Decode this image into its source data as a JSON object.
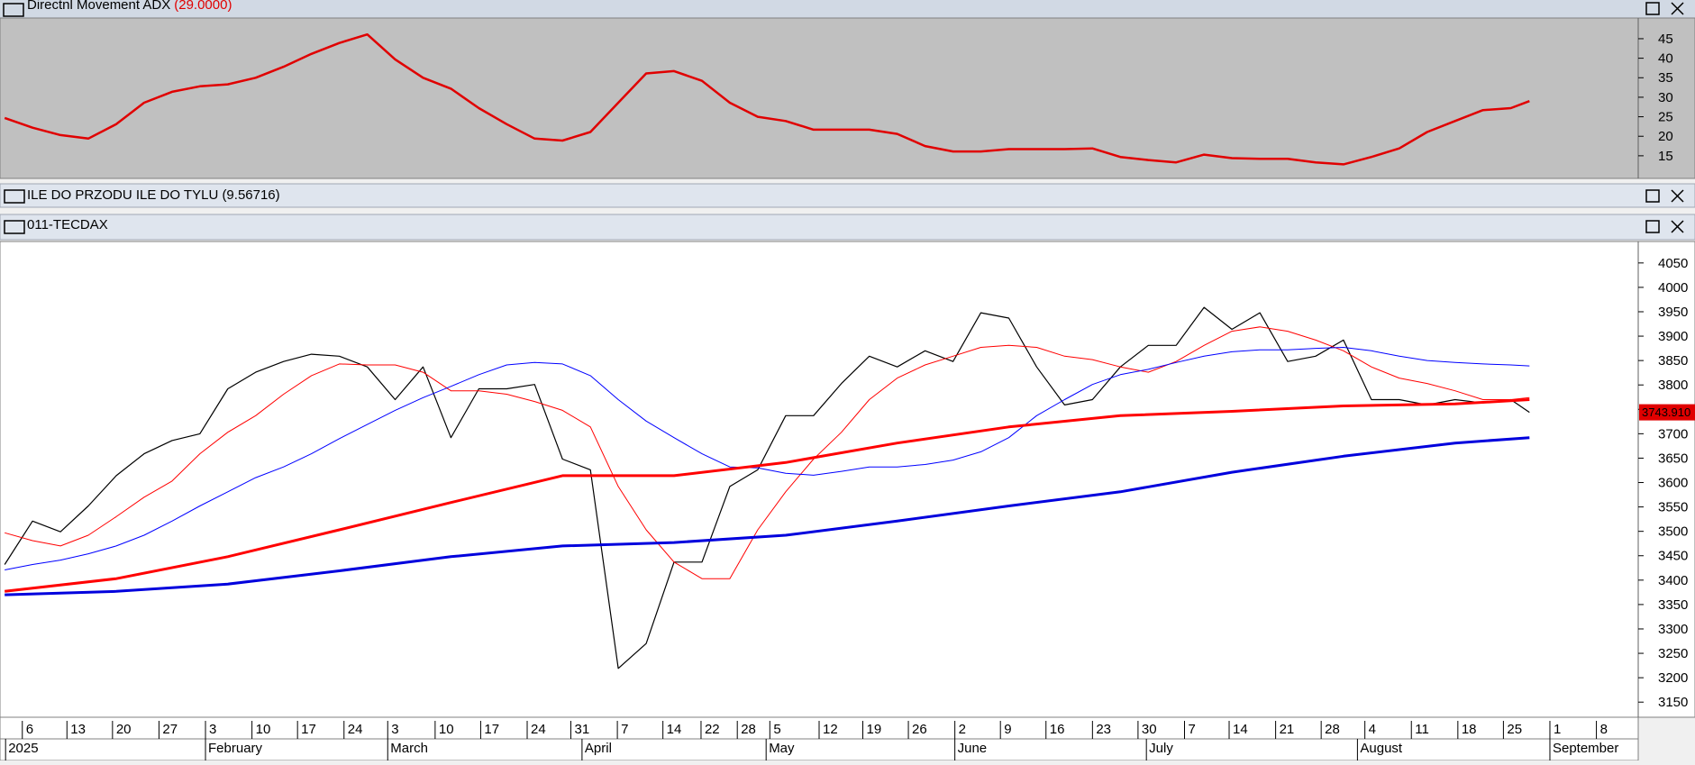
{
  "chart_data": [
    {
      "type": "line",
      "title": "Directnl Movement ADX",
      "title_value": "(29.0000)",
      "xlim": [
        -0.5,
        175.7
      ],
      "ylim": [
        9.2,
        50.3
      ],
      "yticks": [
        15,
        20,
        25,
        30,
        35,
        40,
        45
      ],
      "series": [
        {
          "color": "#e00000",
          "width": 2.5,
          "x": [
            0,
            3,
            6,
            9,
            12,
            15,
            18,
            21,
            24,
            27,
            30,
            33,
            36,
            39,
            42,
            45,
            48,
            51,
            54,
            57,
            60,
            63,
            66,
            69,
            72,
            75,
            78,
            81,
            84,
            87,
            90,
            93,
            96,
            99,
            102,
            105,
            108,
            111,
            114,
            117,
            120,
            123,
            126,
            129,
            132,
            135,
            138,
            141,
            144,
            147,
            150,
            153,
            156,
            159,
            162,
            164
          ],
          "values": [
            24.7,
            22.2,
            20.3,
            19.4,
            23.1,
            28.6,
            31.4,
            32.8,
            33.3,
            35,
            37.8,
            41.1,
            43.9,
            46.1,
            39.7,
            35,
            32.2,
            27.2,
            23.1,
            19.4,
            18.9,
            21.1,
            28.6,
            36.1,
            36.7,
            34.2,
            28.6,
            25,
            23.9,
            21.7,
            21.7,
            21.7,
            20.6,
            17.5,
            16.1,
            16.1,
            16.7,
            16.7,
            16.7,
            16.9,
            14.7,
            13.9,
            13.3,
            15.3,
            14.4,
            14.2,
            14.2,
            13.3,
            12.8,
            14.7,
            16.9,
            21.1,
            23.9,
            26.7,
            27.2,
            29
          ]
        }
      ]
    },
    {
      "type": "line",
      "title": "011-TECDAX",
      "xlim": [
        -0.5,
        175.7
      ],
      "ylim": [
        3119,
        4094
      ],
      "yticks": [
        3150,
        3200,
        3250,
        3300,
        3350,
        3400,
        3450,
        3500,
        3550,
        3600,
        3650,
        3700,
        3750,
        3800,
        3850,
        3900,
        3950,
        4000,
        4050
      ],
      "xticks": [
        {
          "value": 1.9,
          "label": "6"
        },
        {
          "value": 6.7,
          "label": "13"
        },
        {
          "value": 11.6,
          "label": "20"
        },
        {
          "value": 16.6,
          "label": "27"
        },
        {
          "value": 21.6,
          "label": "3"
        },
        {
          "value": 26.6,
          "label": "10"
        },
        {
          "value": 31.5,
          "label": "17"
        },
        {
          "value": 36.5,
          "label": "24"
        },
        {
          "value": 41.2,
          "label": "3"
        },
        {
          "value": 46.3,
          "label": "10"
        },
        {
          "value": 51.2,
          "label": "17"
        },
        {
          "value": 56.2,
          "label": "24"
        },
        {
          "value": 60.9,
          "label": "31"
        },
        {
          "value": 65.9,
          "label": "7"
        },
        {
          "value": 70.8,
          "label": "14"
        },
        {
          "value": 74.9,
          "label": "22"
        },
        {
          "value": 78.8,
          "label": "28"
        },
        {
          "value": 82.3,
          "label": "5"
        },
        {
          "value": 87.6,
          "label": "12"
        },
        {
          "value": 92.3,
          "label": "19"
        },
        {
          "value": 97.2,
          "label": "26"
        },
        {
          "value": 102.2,
          "label": "2"
        },
        {
          "value": 107.1,
          "label": "9"
        },
        {
          "value": 112,
          "label": "16"
        },
        {
          "value": 117,
          "label": "23"
        },
        {
          "value": 121.9,
          "label": "30"
        },
        {
          "value": 126.9,
          "label": "7"
        },
        {
          "value": 131.7,
          "label": "14"
        },
        {
          "value": 136.7,
          "label": "21"
        },
        {
          "value": 141.6,
          "label": "28"
        },
        {
          "value": 146.3,
          "label": "4"
        },
        {
          "value": 151.3,
          "label": "11"
        },
        {
          "value": 156.3,
          "label": "18"
        },
        {
          "value": 161.2,
          "label": "25"
        },
        {
          "value": 166.2,
          "label": "1"
        },
        {
          "value": 171.2,
          "label": "8"
        }
      ],
      "month_ticks": [
        {
          "value": 0.1,
          "label": "2025"
        },
        {
          "value": 21.6,
          "label": "February"
        },
        {
          "value": 41.2,
          "label": "March"
        },
        {
          "value": 62.1,
          "label": "April"
        },
        {
          "value": 81.9,
          "label": "May"
        },
        {
          "value": 102.2,
          "label": "June"
        },
        {
          "value": 122.8,
          "label": "July"
        },
        {
          "value": 145.5,
          "label": "August"
        },
        {
          "value": 166.2,
          "label": "September"
        }
      ],
      "series": [
        {
          "color": "#000000",
          "width": 1.2,
          "last_label": "3743.910",
          "x": [
            0,
            3,
            6,
            9,
            12,
            15,
            18,
            21,
            24,
            27,
            30,
            33,
            36,
            39,
            42,
            45,
            48,
            51,
            54,
            57,
            60,
            63,
            66,
            69,
            72,
            75,
            78,
            81,
            84,
            87,
            90,
            93,
            96,
            99,
            102,
            105,
            108,
            111,
            114,
            117,
            120,
            123,
            126,
            129,
            132,
            135,
            138,
            141,
            144,
            147,
            150,
            153,
            156,
            159,
            162,
            164
          ],
          "values": [
            3432,
            3521,
            3499,
            3552,
            3614,
            3659,
            3686,
            3700,
            3792,
            3826,
            3848,
            3863,
            3859,
            3837,
            3770,
            3837,
            3692,
            3792,
            3792,
            3801,
            3648,
            3626,
            3219,
            3270,
            3437,
            3437,
            3592,
            3626,
            3737,
            3737,
            3803,
            3859,
            3837,
            3870,
            3848,
            3948,
            3937,
            3837,
            3759,
            3770,
            3837,
            3881,
            3881,
            3959,
            3914,
            3948,
            3848,
            3859,
            3892,
            3770,
            3770,
            3759,
            3770,
            3763,
            3770,
            3743.91
          ]
        },
        {
          "color": "#ff0000",
          "width": 1,
          "x": [
            0,
            3,
            6,
            9,
            12,
            15,
            18,
            21,
            24,
            27,
            30,
            33,
            36,
            39,
            42,
            45,
            48,
            51,
            54,
            57,
            60,
            63,
            66,
            69,
            72,
            75,
            78,
            81,
            84,
            87,
            90,
            93,
            96,
            99,
            102,
            105,
            108,
            111,
            114,
            117,
            120,
            123,
            126,
            129,
            132,
            135,
            138,
            141,
            144,
            147,
            150,
            153,
            156,
            159,
            162,
            164
          ],
          "values": [
            3497,
            3481,
            3470,
            3492,
            3530,
            3570,
            3603,
            3659,
            3703,
            3737,
            3781,
            3819,
            3843,
            3841,
            3841,
            3826,
            3788,
            3788,
            3781,
            3766,
            3748,
            3714,
            3592,
            3503,
            3437,
            3403,
            3403,
            3503,
            3581,
            3648,
            3703,
            3770,
            3814,
            3841,
            3859,
            3877,
            3881,
            3877,
            3859,
            3852,
            3837,
            3826,
            3848,
            3881,
            3910,
            3919,
            3910,
            3892,
            3870,
            3837,
            3814,
            3803,
            3788,
            3770,
            3770,
            3774
          ]
        },
        {
          "color": "#0000ff",
          "width": 1,
          "x": [
            0,
            3,
            6,
            9,
            12,
            15,
            18,
            21,
            24,
            27,
            30,
            33,
            36,
            39,
            42,
            45,
            48,
            51,
            54,
            57,
            60,
            63,
            66,
            69,
            72,
            75,
            78,
            81,
            84,
            87,
            90,
            93,
            96,
            99,
            102,
            105,
            108,
            111,
            114,
            117,
            120,
            123,
            126,
            129,
            132,
            135,
            138,
            141,
            144,
            147,
            150,
            153,
            156,
            159,
            162,
            164
          ],
          "values": [
            3421,
            3432,
            3441,
            3454,
            3470,
            3492,
            3521,
            3552,
            3581,
            3610,
            3632,
            3659,
            3690,
            3719,
            3748,
            3774,
            3797,
            3821,
            3841,
            3846,
            3843,
            3819,
            3770,
            3726,
            3692,
            3659,
            3632,
            3630,
            3619,
            3615,
            3623,
            3632,
            3632,
            3637,
            3646,
            3663,
            3692,
            3737,
            3770,
            3801,
            3821,
            3832,
            3846,
            3859,
            3868,
            3872,
            3872,
            3875,
            3877,
            3870,
            3859,
            3850,
            3846,
            3843,
            3841,
            3839
          ]
        },
        {
          "color": "#ff0000",
          "width": 3,
          "x": [
            0,
            12,
            24,
            36,
            48,
            60,
            72,
            84,
            96,
            108,
            120,
            132,
            144,
            156,
            164
          ],
          "values": [
            3377,
            3403,
            3448,
            3503,
            3559,
            3614,
            3614,
            3641,
            3681,
            3714,
            3737,
            3746,
            3757,
            3761,
            3770
          ]
        },
        {
          "color": "#0000dd",
          "width": 3,
          "x": [
            0,
            12,
            24,
            36,
            48,
            60,
            72,
            84,
            96,
            108,
            120,
            132,
            144,
            156,
            164
          ],
          "values": [
            3370,
            3377,
            3392,
            3419,
            3448,
            3470,
            3477,
            3492,
            3521,
            3552,
            3581,
            3621,
            3654,
            3681,
            3692
          ]
        }
      ]
    }
  ],
  "indicator_bar": {
    "title": "ILE DO PRZODU ILE DO TYLU (9.56716)"
  }
}
